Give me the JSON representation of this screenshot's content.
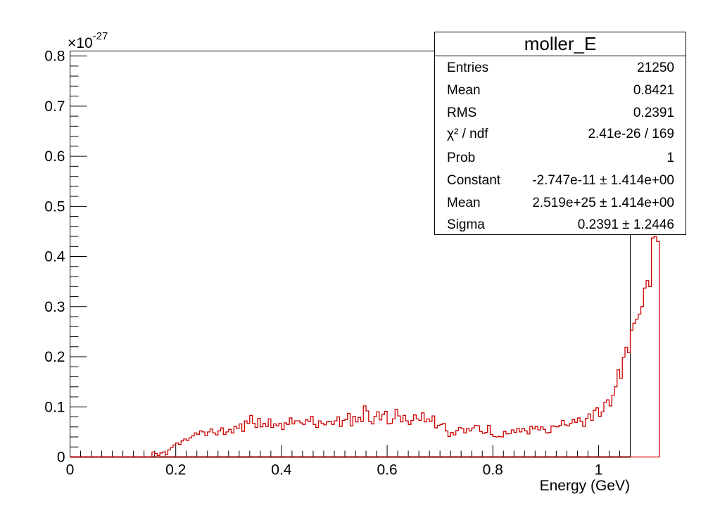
{
  "chart_data": {
    "type": "histogram",
    "xlabel": "Energy (GeV)",
    "ylabel": "",
    "y_scale_factor": "×10",
    "y_scale_exponent": "-27",
    "xlim": [
      0,
      1.06
    ],
    "ylim": [
      0,
      0.81
    ],
    "x_ticks": [
      {
        "value": 0,
        "label": "0"
      },
      {
        "value": 0.2,
        "label": "0.2"
      },
      {
        "value": 0.4,
        "label": "0.4"
      },
      {
        "value": 0.6,
        "label": "0.6"
      },
      {
        "value": 0.8,
        "label": "0.8"
      },
      {
        "value": 1.0,
        "label": "1"
      }
    ],
    "y_ticks": [
      {
        "value": 0,
        "label": "0"
      },
      {
        "value": 0.1,
        "label": "0.1"
      },
      {
        "value": 0.2,
        "label": "0.2"
      },
      {
        "value": 0.3,
        "label": "0.3"
      },
      {
        "value": 0.4,
        "label": "0.4"
      },
      {
        "value": 0.5,
        "label": "0.5"
      },
      {
        "value": 0.6,
        "label": "0.6"
      },
      {
        "value": 0.7,
        "label": "0.7"
      },
      {
        "value": 0.8,
        "label": "0.8"
      }
    ],
    "bin_width": 0.005,
    "bins_start": 0.155,
    "bin_values": [
      0.01,
      0.007,
      0.003,
      0.008,
      0.01,
      0.005,
      0.014,
      0.019,
      0.024,
      0.028,
      0.025,
      0.032,
      0.036,
      0.033,
      0.038,
      0.042,
      0.048,
      0.045,
      0.052,
      0.05,
      0.043,
      0.05,
      0.056,
      0.048,
      0.044,
      0.052,
      0.058,
      0.045,
      0.05,
      0.055,
      0.048,
      0.061,
      0.057,
      0.066,
      0.051,
      0.072,
      0.067,
      0.083,
      0.067,
      0.059,
      0.077,
      0.06,
      0.067,
      0.061,
      0.076,
      0.059,
      0.066,
      0.062,
      0.067,
      0.055,
      0.068,
      0.065,
      0.078,
      0.066,
      0.072,
      0.072,
      0.068,
      0.065,
      0.074,
      0.071,
      0.081,
      0.065,
      0.059,
      0.072,
      0.067,
      0.064,
      0.07,
      0.071,
      0.065,
      0.072,
      0.08,
      0.061,
      0.073,
      0.075,
      0.087,
      0.062,
      0.081,
      0.07,
      0.079,
      0.071,
      0.102,
      0.092,
      0.071,
      0.066,
      0.081,
      0.09,
      0.074,
      0.085,
      0.091,
      0.066,
      0.067,
      0.076,
      0.095,
      0.082,
      0.07,
      0.083,
      0.072,
      0.065,
      0.073,
      0.084,
      0.076,
      0.073,
      0.088,
      0.07,
      0.076,
      0.071,
      0.082,
      0.058,
      0.063,
      0.065,
      0.067,
      0.052,
      0.041,
      0.049,
      0.044,
      0.053,
      0.059,
      0.057,
      0.048,
      0.057,
      0.052,
      0.058,
      0.063,
      0.062,
      0.051,
      0.047,
      0.049,
      0.063,
      0.045,
      0.041,
      0.04,
      0.041,
      0.04,
      0.051,
      0.046,
      0.047,
      0.054,
      0.049,
      0.057,
      0.05,
      0.057,
      0.052,
      0.046,
      0.061,
      0.056,
      0.061,
      0.054,
      0.06,
      0.055,
      0.048,
      0.049,
      0.062,
      0.061,
      0.06,
      0.063,
      0.073,
      0.064,
      0.062,
      0.067,
      0.075,
      0.069,
      0.078,
      0.071,
      0.061,
      0.077,
      0.086,
      0.073,
      0.093,
      0.098,
      0.081,
      0.09,
      0.109,
      0.114,
      0.102,
      0.123,
      0.14,
      0.174,
      0.157,
      0.199,
      0.219,
      0.208,
      0.253,
      0.267,
      0.275,
      0.285,
      0.3,
      0.337,
      0.352,
      0.34,
      0.437,
      0.44,
      0.43
    ]
  },
  "stats_box": {
    "title": "moller_E",
    "rows": [
      {
        "key": "Entries",
        "value": "21250"
      },
      {
        "key": "Mean",
        "value": "0.8421"
      },
      {
        "key": "RMS",
        "value": "0.2391"
      },
      {
        "key": "χ² / ndf",
        "value": "2.41e-26 / 169"
      },
      {
        "key": "Prob",
        "value": "1"
      },
      {
        "key": "Constant",
        "value": "-2.747e-11 ± 1.414e+00"
      },
      {
        "key": "Mean",
        "value": "2.519e+25 ± 1.414e+00"
      },
      {
        "key": "Sigma",
        "value": "0.2391 ± 1.2446"
      }
    ]
  },
  "colors": {
    "histogram": "#cc0000",
    "fit_line": "#8b0000",
    "axis": "#000000"
  }
}
